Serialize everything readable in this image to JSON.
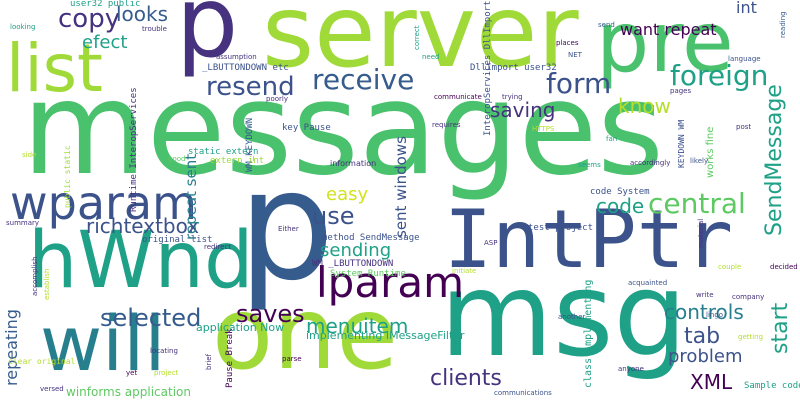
{
  "words": {
    "messages": "messages",
    "server": "server",
    "p_top": "p",
    "pre": "pre",
    "list": "list",
    "msg": "msg",
    "one": "one",
    "p_big": "p",
    "intptr": "IntPtr",
    "hwnd": "hWnd",
    "will": "will",
    "wparam": "wparam",
    "lparam": "lparam",
    "receive": "receive",
    "copy": "copy",
    "looks": "looks",
    "form": "form",
    "resend": "resend",
    "foreign": "foreign",
    "central": "central",
    "sendmessage": "SendMessage",
    "efect": "efect",
    "saving": "saving",
    "know": "know",
    "want_repeat": "want repeat",
    "int": "int",
    "richtextbox": "richtextbox",
    "use": "use",
    "easy": "easy",
    "code": "code",
    "sending": "sending",
    "saves": "saves",
    "selected": "selected",
    "menuitem": "menuitem",
    "controls": "controls",
    "tab": "tab",
    "start": "start",
    "problem": "problem",
    "clients": "clients",
    "xml": "XML",
    "repeating": "repeating",
    "sent_windows": "sent windows",
    "repeat_sent": "repeat sent",
    "application_now": "application Now",
    "implementing_imessagefilter": "implementing IMessageFilter",
    "winforms_application": "winforms application",
    "original_list": "original list",
    "method_sendmessage": "method SendMessage",
    "test_project": "test project",
    "code_system": "code System",
    "key_pause": "key Pause",
    "static_extern": "static extern",
    "extern_int": "extern int",
    "wm_keydown": "WM_KEYDOWN",
    "lbuttondown_etc": "_LBUTTONDOWN etc",
    "dllimport_user32": "DllImport user32",
    "runtime_interopservices": "Runtime InteropServices",
    "user32_public": "user32 public",
    "interopservices_dllimport": "InteropServices DllImport",
    "system_runtime": "System Runtime",
    "wm_lbuttondown": "WM _LBUTTONDOWN",
    "class_implementing": "class implementing",
    "sample_code": "Sample code",
    "pause_break": "Pause Break",
    "works_fine": "works fine",
    "keydown_wm": "KEYDOWN WM",
    "clear_original": "clear original",
    "public_static": "public static",
    "information": "information",
    "communicate": "communicate",
    "assumption": "assumption",
    "requires": "requires",
    "correct": "correct",
    "places": "places",
    "net": "NET",
    "language": "language",
    "reading": "reading",
    "pages": "pages",
    "post": "post",
    "trying": "trying",
    "https": "HTTPS",
    "fan": "fan",
    "seems": "seems",
    "accordingly": "accordingly",
    "likely": "likely",
    "either": "Either",
    "asp": "ASP",
    "initiate": "initiate",
    "acquainted": "acquainted",
    "write": "write",
    "company": "company",
    "lingo": "lingo",
    "getting": "getting",
    "another": "another",
    "anyone": "anyone",
    "communications": "communications",
    "versed": "versed",
    "locating": "locating",
    "yet": "yet",
    "project": "project",
    "brief": "brief",
    "parse": "parse",
    "redirect": "redirect",
    "good": "good",
    "poorly": "poorly",
    "need": "need",
    "send": "send",
    "looking": "looking",
    "trouble": "trouble",
    "side": "side",
    "summary": "summary",
    "accomplish": "accomplish",
    "establish": "establish",
    "material": "material",
    "couple": "couple",
    "decided": "decided"
  },
  "colors": {
    "yellow_green": "#a0da39",
    "lime": "#b5de2b",
    "green": "#4ac16d",
    "mid_green": "#5ec962",
    "teal": "#1fa187",
    "teal_dark": "#277f8e",
    "blue": "#365c8d",
    "slate": "#3b528b",
    "indigo": "#46327e",
    "purple": "#440154",
    "cyan": "#21918c",
    "light_lime": "#d2e21b"
  }
}
